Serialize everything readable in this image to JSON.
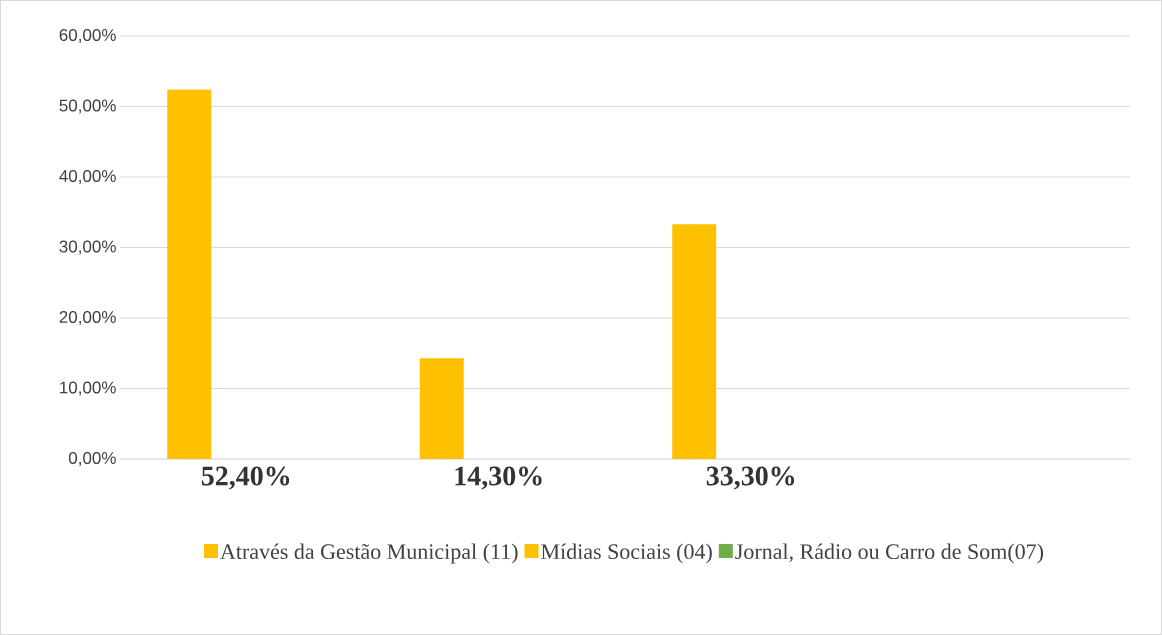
{
  "chart_data": {
    "type": "bar",
    "categories": [
      "52,40%",
      "14,30%",
      "33,30%",
      null
    ],
    "series": [
      {
        "name": "Através da Gestão Municipal (11)",
        "color": "#ffc000",
        "values": [
          52.4,
          14.3,
          33.3,
          null
        ]
      },
      {
        "name": "Mídias Sociais (04)",
        "color": "#ffc000",
        "values": [
          null,
          null,
          null,
          null
        ]
      },
      {
        "name": "Jornal, Rádio ou Carro de Som(07)",
        "color": "#70ad47",
        "values": [
          null,
          null,
          null,
          null
        ]
      }
    ],
    "ylim": [
      0,
      60
    ],
    "yticks": [
      {
        "value": 0,
        "label": "0,00%"
      },
      {
        "value": 10,
        "label": "10,00%"
      },
      {
        "value": 20,
        "label": "20,00%"
      },
      {
        "value": 30,
        "label": "30,00%"
      },
      {
        "value": 40,
        "label": "40,00%"
      },
      {
        "value": 50,
        "label": "50,00%"
      },
      {
        "value": 60,
        "label": "60,00%"
      }
    ],
    "grid": "y",
    "legend": "bottom"
  }
}
